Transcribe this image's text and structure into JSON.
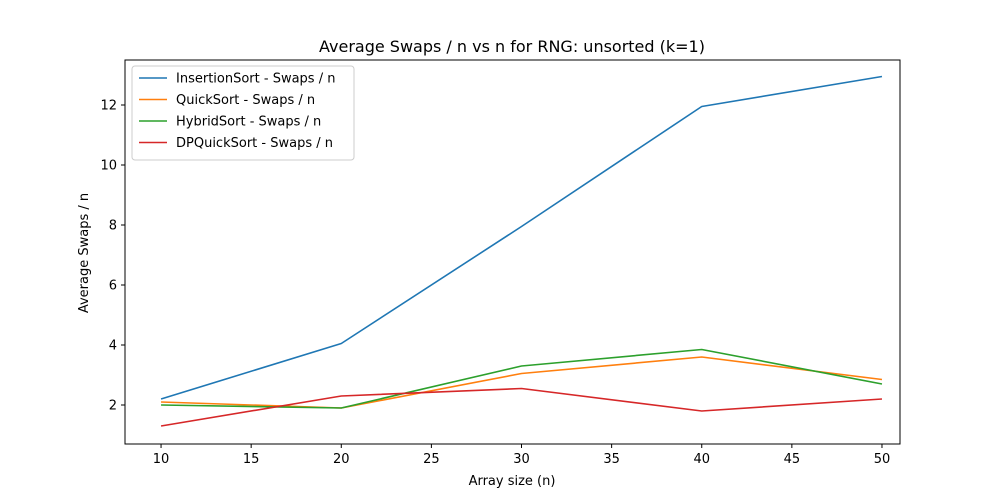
{
  "chart_data": {
    "type": "line",
    "title": "Average Swaps / n vs n for RNG: unsorted (k=1)",
    "xlabel": "Array size (n)",
    "ylabel": "Average Swaps / n",
    "x": [
      10,
      20,
      30,
      40,
      50
    ],
    "xlim": [
      8,
      51
    ],
    "ylim": [
      0.7,
      13.5
    ],
    "xticks": [
      10,
      15,
      20,
      25,
      30,
      35,
      40,
      45,
      50
    ],
    "yticks": [
      2,
      4,
      6,
      8,
      10,
      12
    ],
    "grid": false,
    "legend_position": "top-left",
    "series": [
      {
        "name": "InsertionSort - Swaps / n",
        "color": "#1f77b4",
        "values": [
          2.2,
          4.05,
          7.95,
          11.95,
          12.95
        ]
      },
      {
        "name": "QuickSort - Swaps / n",
        "color": "#ff7f0e",
        "values": [
          2.1,
          1.9,
          3.05,
          3.6,
          2.85
        ]
      },
      {
        "name": "HybridSort - Swaps / n",
        "color": "#2ca02c",
        "values": [
          2.0,
          1.9,
          3.3,
          3.85,
          2.7
        ]
      },
      {
        "name": "DPQuickSort - Swaps / n",
        "color": "#d62728",
        "values": [
          1.3,
          2.3,
          2.55,
          1.8,
          2.2
        ]
      }
    ]
  }
}
